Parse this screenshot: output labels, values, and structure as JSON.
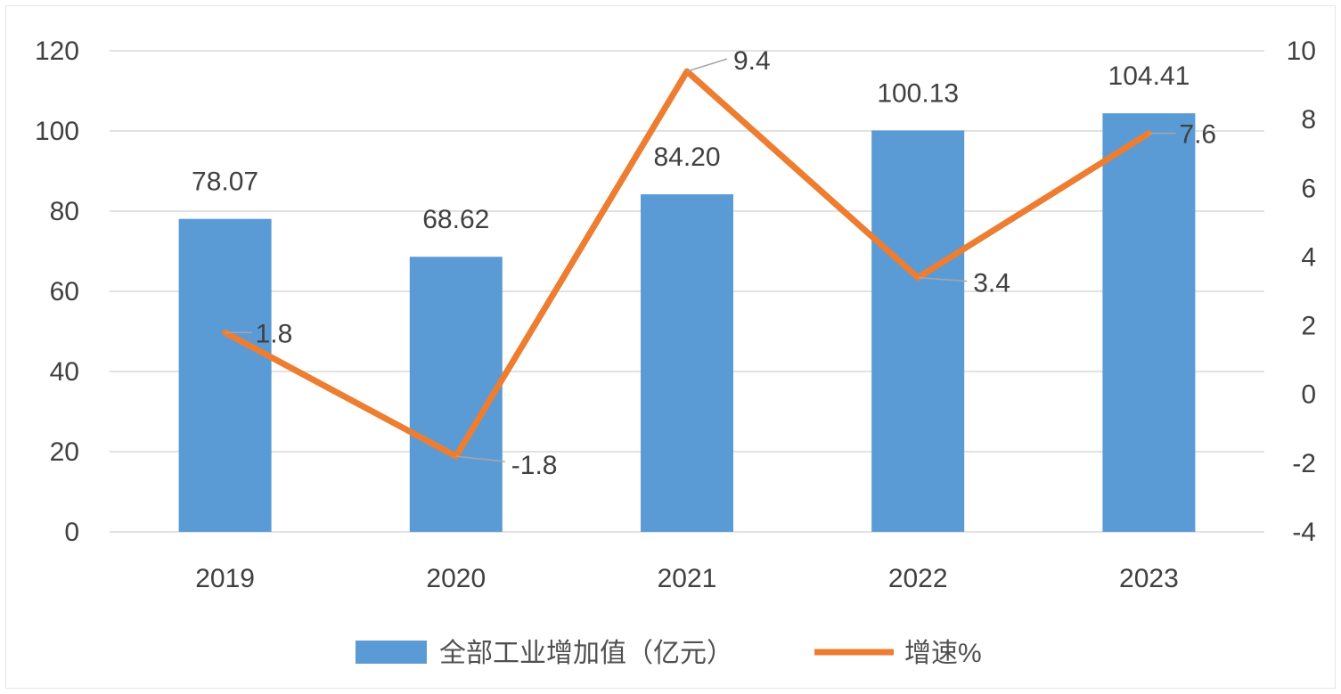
{
  "chart_data": {
    "type": "bar+line",
    "categories": [
      "2019",
      "2020",
      "2021",
      "2022",
      "2023"
    ],
    "bar_series": {
      "name": "全部工业增加值（亿元）",
      "values": [
        78.07,
        68.62,
        84.2,
        100.13,
        104.41
      ],
      "labels": [
        "78.07",
        "68.62",
        "84.20",
        "100.13",
        "104.41"
      ],
      "color": "#5b9bd5"
    },
    "line_series": {
      "name": "增速%",
      "values": [
        1.8,
        -1.8,
        9.4,
        3.4,
        7.6
      ],
      "labels": [
        "1.8",
        "-1.8",
        "9.4",
        "3.4",
        "7.6"
      ],
      "color": "#ed7d31",
      "axis": "right"
    },
    "y_left": {
      "min": 0,
      "max": 120,
      "ticks": [
        "0",
        "20",
        "40",
        "60",
        "80",
        "100",
        "120"
      ]
    },
    "y_right": {
      "min": -4,
      "max": 10,
      "ticks": [
        "-4",
        "-2",
        "0",
        "2",
        "4",
        "6",
        "8",
        "10"
      ]
    },
    "grid": true,
    "legend_position": "bottom",
    "gridline_color": "#d9d9d9",
    "axis_text_color": "#404040"
  }
}
